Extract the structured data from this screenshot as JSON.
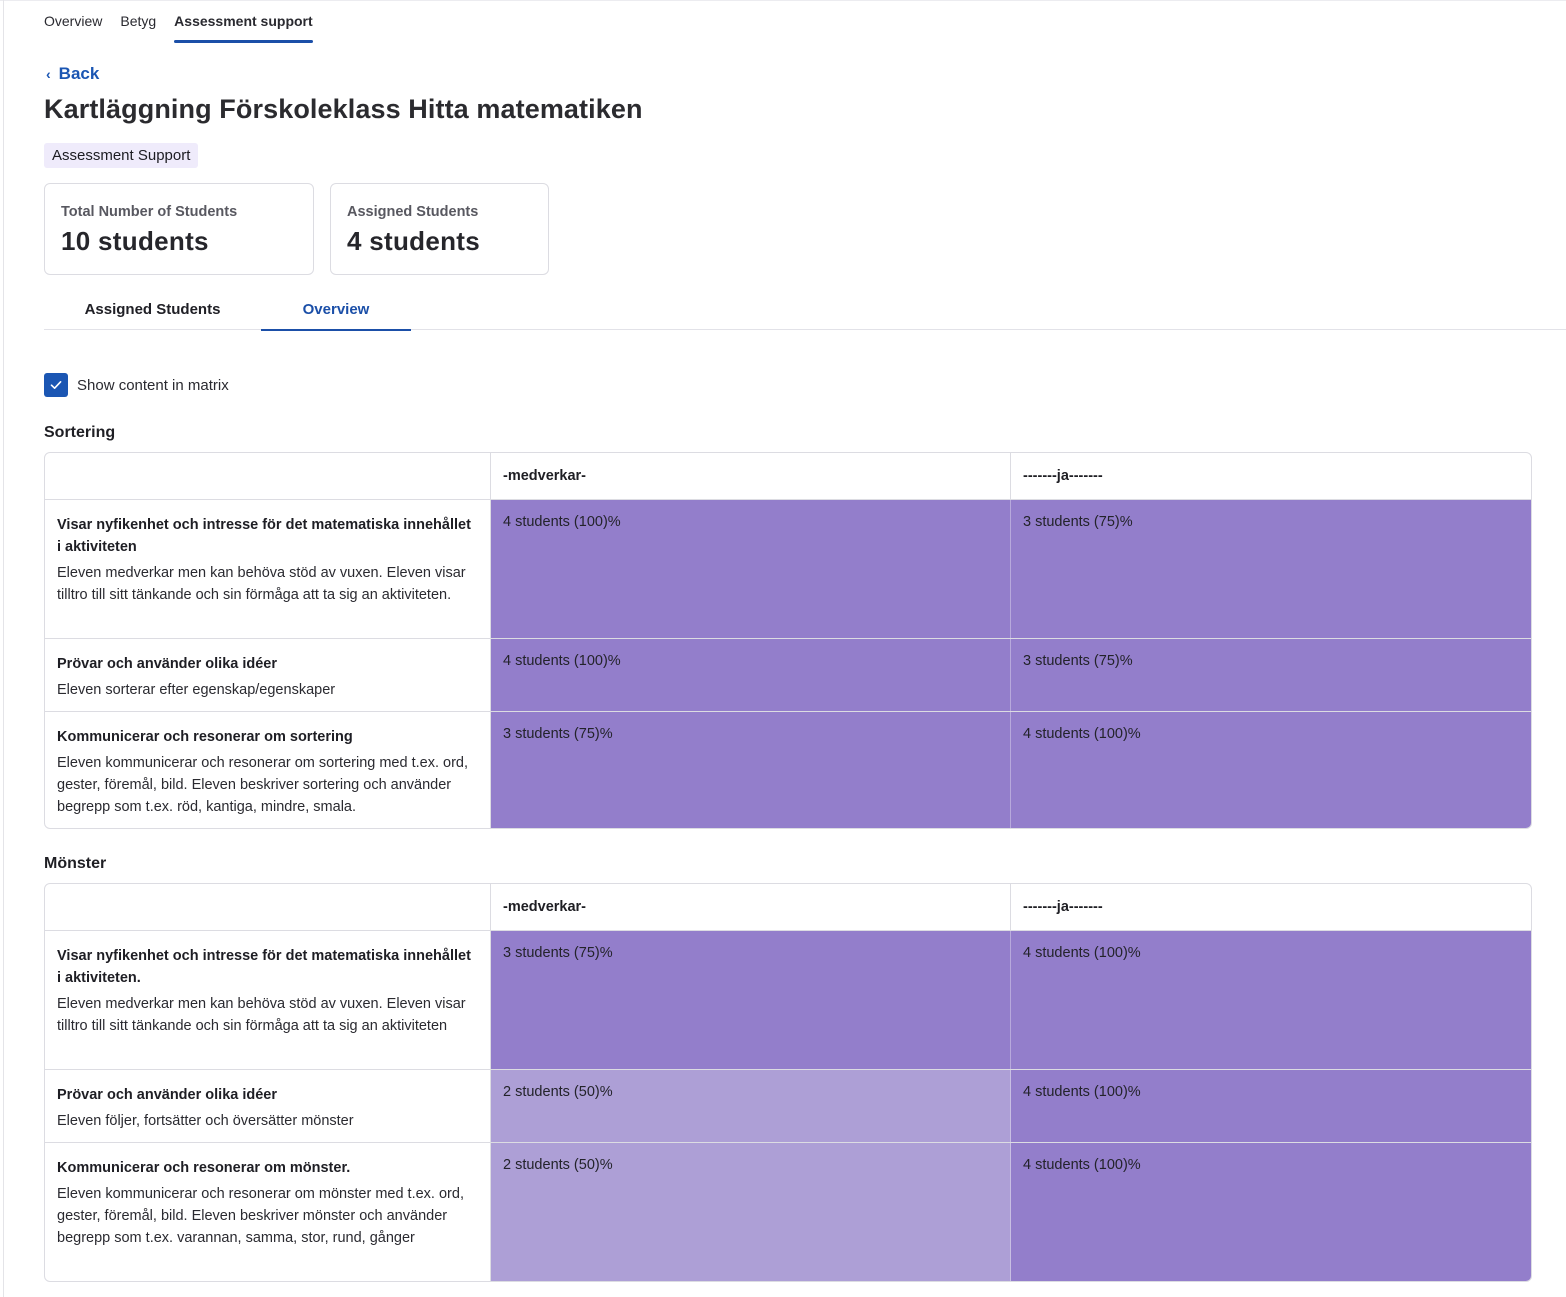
{
  "topnav": {
    "tabs": [
      {
        "label": "Overview"
      },
      {
        "label": "Betyg"
      },
      {
        "label": "Assessment support"
      }
    ],
    "active": "Assessment support"
  },
  "back_label": "Back",
  "page_title": "Kartläggning Förskoleklass Hitta matematiken",
  "badge": "Assessment Support",
  "stats": [
    {
      "label": "Total Number of Students",
      "value": "10 students"
    },
    {
      "label": "Assigned Students",
      "value": "4 students"
    }
  ],
  "subtabs": [
    {
      "label": "Assigned Students"
    },
    {
      "label": "Overview"
    }
  ],
  "show_content": {
    "label": "Show content in matrix",
    "checked": true
  },
  "colors": {
    "accent": "#1b56b3",
    "level_high": "#937ecb",
    "level_mid": "#ad9fd6"
  },
  "sections": [
    {
      "title": "Sortering",
      "columns": [
        "-medverkar-",
        "-------ja-------"
      ],
      "rows": [
        {
          "title": "Visar nyfikenhet och intresse för det matematiska innehållet i aktiviteten",
          "desc": "Eleven medverkar men kan behöva stöd av vuxen. Eleven visar tilltro till sitt tänkande och sin förmåga att ta sig an aktiviteten.",
          "cells": [
            "4 students (100)%",
            "3 students (75)%"
          ]
        },
        {
          "title": "Prövar och använder olika idéer",
          "desc": "Eleven sorterar efter egenskap/egenskaper",
          "cells": [
            "4 students (100)%",
            "3 students (75)%"
          ]
        },
        {
          "title": "Kommunicerar och resonerar om sortering",
          "desc": "Eleven kommunicerar och resonerar om sortering med t.ex. ord, gester, föremål, bild. Eleven beskriver sortering och använder begrepp som t.ex. röd, kantiga, mindre, smala.",
          "cells": [
            "3 students (75)%",
            "4 students (100)%"
          ]
        }
      ]
    },
    {
      "title": "Mönster",
      "columns": [
        "-medverkar-",
        "-------ja-------"
      ],
      "rows": [
        {
          "title": "Visar nyfikenhet och intresse för det matematiska innehållet i aktiviteten.",
          "desc": "Eleven medverkar men kan behöva stöd av vuxen. Eleven visar tilltro till sitt tänkande och sin förmåga att ta sig an aktiviteten",
          "cells": [
            "3 students (75)%",
            "4 students (100)%"
          ]
        },
        {
          "title": "Prövar och använder olika idéer",
          "desc": "Eleven följer, fortsätter och översätter mönster",
          "cells": [
            "2 students (50)%",
            "4 students (100)%"
          ]
        },
        {
          "title": "Kommunicerar och resonerar om mönster.",
          "desc": "Eleven kommunicerar och resonerar om mönster med t.ex. ord, gester, föremål, bild. Eleven beskriver mönster och använder begrepp som t.ex. varannan, samma, stor, rund, gånger",
          "cells": [
            "2 students (50)%",
            "4 students (100)%"
          ]
        }
      ]
    }
  ]
}
